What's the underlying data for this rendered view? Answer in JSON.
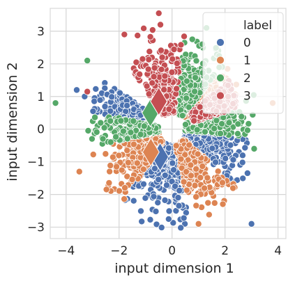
{
  "chart_data": {
    "type": "scatter",
    "title": "",
    "xlabel": "input dimension 1",
    "ylabel": "input dimension 2",
    "xlim": [
      -4.6,
      4.3
    ],
    "ylim": [
      -3.35,
      3.7
    ],
    "xticks": [
      -4,
      -2,
      0,
      2,
      4
    ],
    "yticks": [
      -3,
      -2,
      -1,
      0,
      1,
      2,
      3
    ],
    "grid": true,
    "legend": {
      "title": "label",
      "placement": "top-right",
      "entries": [
        "0",
        "1",
        "2",
        "3"
      ]
    },
    "colors": {
      "0": "#4c72b0",
      "1": "#dd8452",
      "2": "#55a868",
      "3": "#c44e52",
      "grid": "#d5d5d5",
      "marker_edge": "#ffffff"
    },
    "series": [
      {
        "label": "0",
        "regions": [
          {
            "angle_from_deg": 230,
            "angle_to_deg": 285,
            "r_min": 0.5,
            "r_max": 3.1
          },
          {
            "angle_from_deg": 325,
            "angle_to_deg": 355,
            "r_min": 0.5,
            "r_max": 3.2
          },
          {
            "angle_from_deg": 150,
            "angle_to_deg": 170,
            "r_min": 0.8,
            "r_max": 3.2
          }
        ],
        "outliers": [
          [
            -3.6,
            1.2
          ],
          [
            -3.3,
            1.0
          ],
          [
            3.0,
            -2.9
          ]
        ]
      },
      {
        "label": "1",
        "regions": [
          {
            "angle_from_deg": 190,
            "angle_to_deg": 230,
            "r_min": 0.5,
            "r_max": 3.2
          },
          {
            "angle_from_deg": 285,
            "angle_to_deg": 325,
            "r_min": 0.5,
            "r_max": 3.1
          },
          {
            "angle_from_deg": 20,
            "angle_to_deg": 45,
            "r_min": 0.6,
            "r_max": 2.8
          }
        ],
        "outliers": [
          [
            3.8,
            0.8
          ],
          [
            -3.5,
            -1.3
          ],
          [
            1.0,
            -2.9
          ]
        ]
      },
      {
        "label": "2",
        "regions": [
          {
            "angle_from_deg": 45,
            "angle_to_deg": 80,
            "r_min": 0.5,
            "r_max": 3.0
          },
          {
            "angle_from_deg": 170,
            "angle_to_deg": 190,
            "r_min": 0.5,
            "r_max": 3.2
          },
          {
            "angle_from_deg": 355,
            "angle_to_deg": 380,
            "r_min": 0.5,
            "r_max": 3.3
          }
        ],
        "outliers": [
          [
            -4.4,
            0.8
          ],
          [
            -3.2,
            2.1
          ],
          [
            3.1,
            -0.6
          ],
          [
            1.3,
            3.1
          ]
        ]
      },
      {
        "label": "3",
        "regions": [
          {
            "angle_from_deg": 80,
            "angle_to_deg": 130,
            "r_min": 0.5,
            "r_max": 3.3
          },
          {
            "angle_from_deg": 15,
            "angle_to_deg": 35,
            "r_min": 0.8,
            "r_max": 2.6
          }
        ],
        "outliers": [
          [
            -0.5,
            3.55
          ],
          [
            -1.8,
            2.9
          ],
          [
            -3.2,
            1.15
          ]
        ]
      }
    ],
    "centroids": [
      {
        "label": "0",
        "x": -0.45,
        "y": -0.85
      },
      {
        "label": "1",
        "x": -0.8,
        "y": -0.7
      },
      {
        "label": "2",
        "x": -0.82,
        "y": 0.5
      },
      {
        "label": "3",
        "x": -0.5,
        "y": 0.85
      }
    ]
  }
}
